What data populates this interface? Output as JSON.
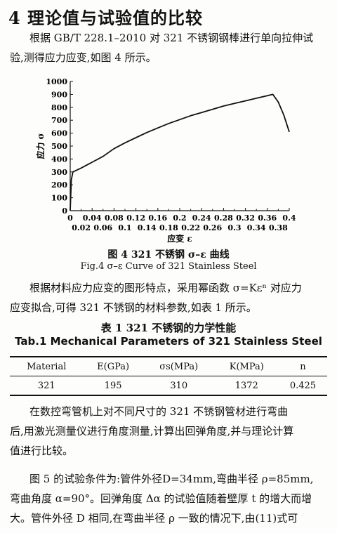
{
  "section": {
    "heading": "4 理论值与试验值的比较"
  },
  "paragraphs": [
    {
      "lines": [
        "根据 GB/T 228.1–2010 对 321 不锈钢钢棒进行单向拉伸试",
        "验,测得应力应变,如图 4 所示。"
      ]
    },
    {
      "lines": [
        "根据材料应力应变的图形特点，采用幂函数 σ=Kεⁿ 对应力",
        "应变拟合,可得 321 不锈钢的材料参数,如表 1 所示。"
      ]
    },
    {
      "lines": [
        "在数控弯管机上对不同尺寸的 321 不锈钢管材进行弯曲",
        "后,用激光测量仪进行角度测量,计算出回弹角度,并与理论计算",
        "值进行比较。"
      ]
    },
    {
      "lines": [
        "图 5 的试验条件为:管件外径D=34mm,弯曲半径 ρ=85mm,",
        "弯曲角度 α=90°。回弹角度 Δα 的试验值随着壁厚 t 的增大而增",
        "大。管件外径 D 相同,在弯曲半径 ρ 一致的情况下,由(11)式可"
      ]
    }
  ],
  "figure": {
    "caption_cn": "图 4 321 不锈钢 σ–ε 曲线",
    "caption_en": "Fig.4 σ–ε Curve of 321 Stainless Steel"
  },
  "chart_data": {
    "type": "line",
    "xlabel": "应变 ε",
    "ylabel": "应力 σ",
    "xlim": [
      0,
      0.4
    ],
    "ylim": [
      0,
      1000
    ],
    "x_ticks_upper": [
      "0",
      "0.04",
      "0.08",
      "0.12",
      "0.16",
      "0.2",
      "0.24",
      "0.28",
      "0.32",
      "0.36",
      "0.4"
    ],
    "x_ticks_lower": [
      "0.02",
      "0.06",
      "0.1",
      "0.14",
      "0.18",
      "0.22",
      "0.26",
      "0.3",
      "0.34",
      "0.38"
    ],
    "y_ticks": [
      "0",
      "100",
      "200",
      "300",
      "400",
      "500",
      "600",
      "700",
      "800",
      "900",
      "1000"
    ],
    "grid": false,
    "series": [
      {
        "x": [
          0,
          0.002,
          0.005,
          0.02,
          0.04,
          0.06,
          0.08,
          0.1,
          0.12,
          0.14,
          0.16,
          0.18,
          0.2,
          0.22,
          0.24,
          0.26,
          0.28,
          0.3,
          0.32,
          0.34,
          0.36,
          0.37,
          0.38,
          0.39,
          0.4
        ],
        "y": [
          0,
          240,
          300,
          330,
          375,
          420,
          480,
          525,
          565,
          605,
          640,
          675,
          705,
          735,
          760,
          785,
          810,
          830,
          850,
          870,
          890,
          900,
          840,
          740,
          610
        ]
      }
    ]
  },
  "table": {
    "title_cn": "表 1 321 不锈钢的力学性能",
    "title_en": "Tab.1 Mechanical Parameters of 321 Stainless Steel",
    "headers": [
      "Material",
      "E(GPa)",
      "σs(MPa)",
      "K(MPa)",
      "n"
    ],
    "rows": [
      [
        "321",
        "195",
        "310",
        "1372",
        "0.425"
      ]
    ]
  }
}
